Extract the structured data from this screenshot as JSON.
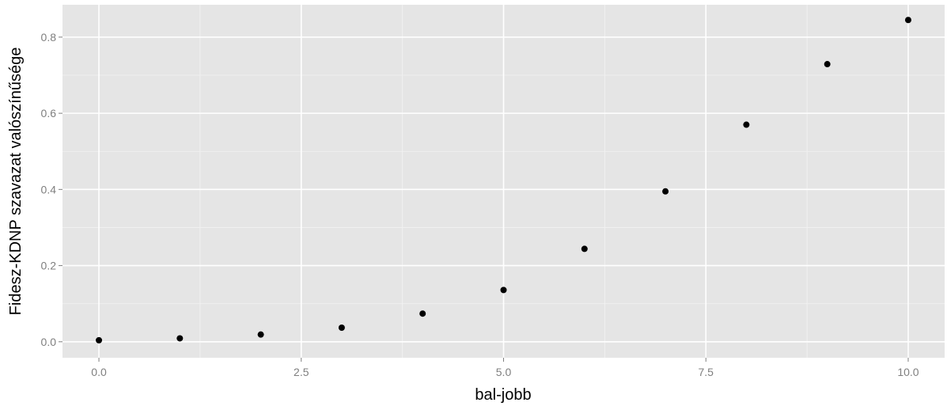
{
  "chart_data": {
    "type": "scatter",
    "xlabel": "bal-jobb",
    "ylabel": "Fidesz-KDNP szavazat valószínűsége",
    "xlim": [
      -0.45,
      10.45
    ],
    "ylim": [
      -0.042,
      0.885
    ],
    "x_ticks": [
      0.0,
      2.5,
      5.0,
      7.5,
      10.0
    ],
    "x_tick_labels": [
      "0.0",
      "2.5",
      "5.0",
      "7.5",
      "10.0"
    ],
    "y_ticks": [
      0.0,
      0.2,
      0.4,
      0.6,
      0.8
    ],
    "y_tick_labels": [
      "0.0",
      "0.2",
      "0.4",
      "0.6",
      "0.8"
    ],
    "x": [
      0,
      1,
      2,
      3,
      4,
      5,
      6,
      7,
      8,
      9,
      10
    ],
    "y": [
      0.004,
      0.009,
      0.019,
      0.037,
      0.074,
      0.136,
      0.244,
      0.395,
      0.57,
      0.729,
      0.845
    ],
    "grid": true,
    "legend": "none",
    "colors": {
      "panel": "#e5e5e5",
      "grid": "#ffffff",
      "point": "#000000",
      "tick_text": "#7f7f7f",
      "title_text": "#000000"
    }
  }
}
